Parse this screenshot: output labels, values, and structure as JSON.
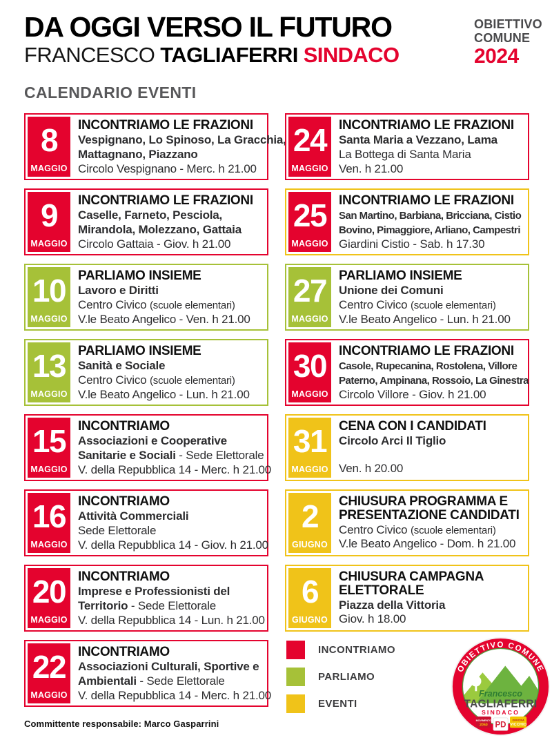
{
  "header": {
    "title": "DA OGGI VERSO IL FUTURO",
    "candidate_first": "FRANCESCO ",
    "candidate_last": "TAGLIAFERRI ",
    "candidate_role": "SINDACO",
    "brand_line1": "OBIETTIVO",
    "brand_line2": "COMUNE",
    "brand_year": "2024"
  },
  "section_title": "CALENDARIO EVENTI",
  "colors": {
    "red": "#E4032E",
    "green": "#A6C138",
    "yellow": "#F0C319"
  },
  "columns": {
    "left": [
      {
        "day": "8",
        "month": "MAGGIO",
        "color_key": "red",
        "title": "INCONTRIAMO LE FRAZIONI",
        "lines": [
          [
            {
              "t": "Vespignano, Lo Spinoso, La Gracchia,",
              "b": true
            }
          ],
          [
            {
              "t": "Mattagnano, Piazzano",
              "b": true
            }
          ]
        ],
        "footer": "Circolo Vespignano - Merc. h 21.00"
      },
      {
        "day": "9",
        "month": "MAGGIO",
        "color_key": "red",
        "title": "INCONTRIAMO LE FRAZIONI",
        "lines": [
          [
            {
              "t": "Caselle, Farneto, Pesciola,",
              "b": true
            }
          ],
          [
            {
              "t": "Mirandola, Molezzano, Gattaia",
              "b": true
            }
          ]
        ],
        "footer": "Circolo Gattaia - Giov. h 21.00"
      },
      {
        "day": "10",
        "month": "MAGGIO",
        "color_key": "green",
        "title": "PARLIAMO INSIEME",
        "lines": [
          [
            {
              "t": "Lavoro e Diritti",
              "b": true
            }
          ],
          [
            {
              "t": "Centro Civico ",
              "b": false
            },
            {
              "t": "(scuole elementari)",
              "s": true
            }
          ]
        ],
        "footer": "V.le Beato Angelico - Ven. h 21.00"
      },
      {
        "day": "13",
        "month": "MAGGIO",
        "color_key": "green",
        "title": "PARLIAMO INSIEME",
        "lines": [
          [
            {
              "t": "Sanità e Sociale",
              "b": true
            }
          ],
          [
            {
              "t": "Centro Civico ",
              "b": false
            },
            {
              "t": "(scuole elementari)",
              "s": true
            }
          ]
        ],
        "footer": "V.le Beato Angelico - Lun. h 21.00"
      },
      {
        "day": "15",
        "month": "MAGGIO",
        "color_key": "red",
        "title": "INCONTRIAMO",
        "lines": [
          [
            {
              "t": "Associazioni e Cooperative",
              "b": true
            }
          ],
          [
            {
              "t": "Sanitarie e Sociali",
              "b": true
            },
            {
              "t": " - Sede Elettorale",
              "b": false
            }
          ]
        ],
        "footer": "V. della Repubblica 14 - Merc. h 21.00"
      },
      {
        "day": "16",
        "month": "MAGGIO",
        "color_key": "red",
        "title": "INCONTRIAMO",
        "lines": [
          [
            {
              "t": "Attività Commerciali",
              "b": true
            }
          ],
          [
            {
              "t": "Sede Elettorale",
              "b": false
            }
          ]
        ],
        "footer": "V. della Repubblica 14 - Giov. h 21.00"
      },
      {
        "day": "20",
        "month": "MAGGIO",
        "color_key": "red",
        "title": "INCONTRIAMO",
        "lines": [
          [
            {
              "t": "Imprese e Professionisti del",
              "b": true
            }
          ],
          [
            {
              "t": "Territorio",
              "b": true
            },
            {
              "t": " - Sede Elettorale",
              "b": false
            }
          ]
        ],
        "footer": "V. della Repubblica 14 - Lun. h 21.00"
      },
      {
        "day": "22",
        "month": "MAGGIO",
        "color_key": "red",
        "title": "INCONTRIAMO",
        "lines": [
          [
            {
              "t": "Associazioni Culturali, Sportive e",
              "b": true
            }
          ],
          [
            {
              "t": "Ambientali",
              "b": true
            },
            {
              "t": " - Sede Elettorale",
              "b": false
            }
          ]
        ],
        "footer": "V. della Repubblica 14 - Merc. h 21.00"
      }
    ],
    "right": [
      {
        "day": "24",
        "month": "MAGGIO",
        "color_key": "red",
        "title": "INCONTRIAMO LE FRAZIONI",
        "lines": [
          [
            {
              "t": "Santa Maria a Vezzano, Lama",
              "b": true
            }
          ],
          [
            {
              "t": "La Bottega di Santa Maria",
              "b": false
            }
          ]
        ],
        "footer": "Ven. h 21.00"
      },
      {
        "day": "25",
        "month": "MAGGIO",
        "color_key": "red",
        "border_key": "yellow",
        "title": "INCONTRIAMO LE FRAZIONI",
        "lines": [
          [
            {
              "t": "San Martino, Barbiana, Bricciana, Cistio",
              "b": true,
              "c": true
            }
          ],
          [
            {
              "t": "Bovino, Pimaggiore, Arliano, Campestri",
              "b": true,
              "c": true
            }
          ]
        ],
        "footer": "Giardini Cistio - Sab. h 17.30"
      },
      {
        "day": "27",
        "month": "MAGGIO",
        "color_key": "green",
        "title": "PARLIAMO INSIEME",
        "lines": [
          [
            {
              "t": "Unione dei Comuni",
              "b": true
            }
          ],
          [
            {
              "t": "Centro Civico ",
              "b": false
            },
            {
              "t": "(scuole elementari)",
              "s": true
            }
          ]
        ],
        "footer": "V.le Beato Angelico - Lun. h 21.00"
      },
      {
        "day": "30",
        "month": "MAGGIO",
        "color_key": "red",
        "title": "INCONTRIAMO LE FRAZIONI",
        "lines": [
          [
            {
              "t": "Casole, Rupecanina, Rostolena, Villore",
              "b": true,
              "c": true
            }
          ],
          [
            {
              "t": "Paterno, Ampinana, Rossoio, La Ginestra",
              "b": true,
              "c": true
            }
          ]
        ],
        "footer": "Circolo Villore - Giov. h 21.00"
      },
      {
        "day": "31",
        "month": "MAGGIO",
        "color_key": "yellow",
        "title": "CENA CON I CANDIDATI",
        "lines": [
          [
            {
              "t": "Circolo Arci Il Tiglio",
              "b": true
            }
          ]
        ],
        "footer": "Ven. h 20.00"
      },
      {
        "day": "2",
        "month": "GIUGNO",
        "color_key": "yellow",
        "title": "CHIUSURA PROGRAMMA E PRESENTAZIONE CANDIDATI",
        "lines": [
          [
            {
              "t": "Centro Civico ",
              "b": false
            },
            {
              "t": "(scuole elementari)",
              "s": true
            }
          ]
        ],
        "footer": "V.le Beato Angelico - Dom. h 21.00"
      },
      {
        "day": "6",
        "month": "GIUGNO",
        "color_key": "yellow",
        "title": "CHIUSURA CAMPAGNA ELETTORALE",
        "lines": [
          [
            {
              "t": "Piazza della Vittoria",
              "b": true
            }
          ]
        ],
        "footer": "Giov. h 18.00"
      }
    ]
  },
  "legend": {
    "items": [
      {
        "color_key": "red",
        "label": "INCONTRIAMO"
      },
      {
        "color_key": "green",
        "label": "PARLIAMO"
      },
      {
        "color_key": "yellow",
        "label": "EVENTI"
      }
    ]
  },
  "logo": {
    "arc_text": "OBIETTIVO COMUNE",
    "first_name": "Francesco",
    "last_name": "TAGLIAFERRI",
    "role": "SINDACO",
    "badge_movimento_line1": "MOVIMENTO",
    "badge_movimento_line2": "2050",
    "badge_pd": "PD",
    "badge_officina_line1": "OFFICINA",
    "badge_officina_line2": "VICCHIO"
  },
  "footer": {
    "text": "Committente responsabile: Marco Gasparrini"
  }
}
